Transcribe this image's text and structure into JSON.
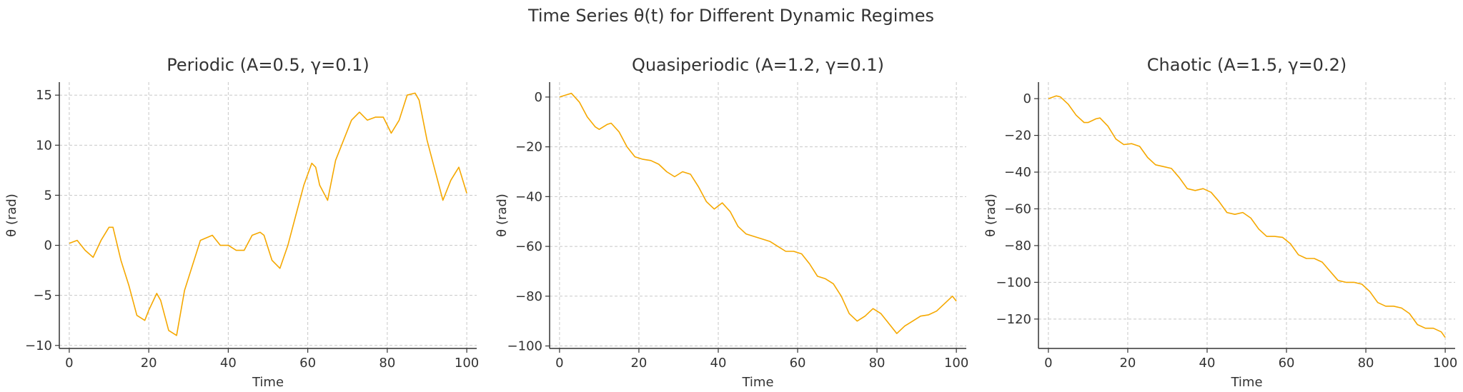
{
  "figure": {
    "title": "Time Series θ(t) for Different Dynamic Regimes"
  },
  "colors": {
    "line": "#F5A800",
    "text": "#333333",
    "grid": "#c8c8c8"
  },
  "chart_data": [
    {
      "type": "line",
      "title": "Periodic (A=0.5, γ=0.1)",
      "xlabel": "Time",
      "ylabel": "θ (rad)",
      "xlim": [
        -2.5,
        102.5
      ],
      "ylim": [
        -10.3,
        16.3
      ],
      "xticks": [
        0,
        20,
        40,
        60,
        80,
        100
      ],
      "yticks": [
        -10,
        -5,
        0,
        5,
        10,
        15
      ],
      "grid": true,
      "series": [
        {
          "x": [
            0,
            2,
            4,
            6,
            8,
            10,
            11,
            13,
            15,
            17,
            19,
            20,
            22,
            23,
            25,
            27,
            29,
            31,
            33,
            36,
            38,
            40,
            42,
            44,
            46,
            48,
            49,
            51,
            53,
            55,
            57,
            59,
            61,
            62,
            63,
            65,
            67,
            69,
            71,
            73,
            75,
            77,
            79,
            81,
            83,
            85,
            87,
            88,
            90,
            92,
            94,
            96,
            98,
            100
          ],
          "y": [
            0.2,
            0.5,
            -0.5,
            -1.2,
            0.5,
            1.8,
            1.8,
            -1.5,
            -4.0,
            -7.0,
            -7.5,
            -6.5,
            -4.8,
            -5.5,
            -8.5,
            -9.0,
            -4.5,
            -2.0,
            0.5,
            1.0,
            0.0,
            0.0,
            -0.5,
            -0.5,
            1.0,
            1.3,
            1.0,
            -1.5,
            -2.3,
            0.0,
            3.0,
            6.0,
            8.2,
            7.8,
            6.0,
            4.5,
            8.5,
            10.5,
            12.5,
            13.3,
            12.5,
            12.8,
            12.8,
            11.2,
            12.5,
            15.0,
            15.2,
            14.5,
            10.5,
            7.5,
            4.5,
            6.5,
            7.8,
            5.2
          ]
        }
      ]
    },
    {
      "type": "line",
      "title": "Quasiperiodic (A=1.2, γ=0.1)",
      "xlabel": "Time",
      "ylabel": "θ (rad)",
      "xlim": [
        -2.5,
        102.5
      ],
      "ylim": [
        -101,
        6
      ],
      "xticks": [
        0,
        20,
        40,
        60,
        80,
        100
      ],
      "yticks": [
        -100,
        -80,
        -60,
        -40,
        -20,
        0
      ],
      "grid": true,
      "series": [
        {
          "x": [
            0,
            2,
            3,
            5,
            7,
            9,
            10,
            12,
            13,
            15,
            17,
            19,
            21,
            23,
            25,
            27,
            29,
            31,
            33,
            35,
            37,
            39,
            41,
            43,
            45,
            47,
            49,
            51,
            53,
            55,
            57,
            59,
            61,
            63,
            65,
            67,
            69,
            71,
            73,
            75,
            77,
            79,
            81,
            83,
            85,
            87,
            89,
            91,
            93,
            95,
            97,
            99,
            100
          ],
          "y": [
            0,
            1.0,
            1.5,
            -2,
            -8,
            -12,
            -13,
            -11,
            -10.5,
            -14,
            -20,
            -24,
            -25,
            -25.5,
            -27,
            -30,
            -32,
            -30,
            -31,
            -36,
            -42,
            -45,
            -42.5,
            -46,
            -52,
            -55,
            -56,
            -57,
            -58,
            -60,
            -62,
            -62,
            -63,
            -67,
            -72,
            -73,
            -75,
            -80,
            -87,
            -90,
            -88,
            -85,
            -87,
            -91,
            -95,
            -92,
            -90,
            -88,
            -87.5,
            -86,
            -83,
            -80,
            -82
          ]
        }
      ]
    },
    {
      "type": "line",
      "title": "Chaotic (A=1.5, γ=0.2)",
      "xlabel": "Time",
      "ylabel": "θ (rad)",
      "xlim": [
        -2.5,
        102.5
      ],
      "ylim": [
        -136,
        9
      ],
      "xticks": [
        0,
        20,
        40,
        60,
        80,
        100
      ],
      "yticks": [
        -120,
        -100,
        -80,
        -60,
        -40,
        -20,
        0
      ],
      "grid": true,
      "series": [
        {
          "x": [
            0,
            2,
            3,
            5,
            7,
            9,
            10,
            12,
            13,
            15,
            17,
            19,
            21,
            23,
            25,
            27,
            29,
            31,
            33,
            35,
            37,
            39,
            41,
            43,
            45,
            47,
            49,
            51,
            53,
            55,
            57,
            59,
            61,
            63,
            65,
            67,
            69,
            71,
            73,
            75,
            77,
            79,
            81,
            83,
            85,
            87,
            89,
            91,
            93,
            95,
            97,
            99,
            100
          ],
          "y": [
            0,
            1.5,
            1.0,
            -3,
            -9,
            -13,
            -13,
            -11,
            -10.5,
            -15,
            -22,
            -25,
            -24.5,
            -26,
            -32,
            -36,
            -37,
            -38,
            -43,
            -49,
            -50,
            -49,
            -51,
            -56,
            -62,
            -63,
            -62,
            -65,
            -71,
            -75,
            -75,
            -75.5,
            -79,
            -85,
            -87,
            -87,
            -89,
            -94,
            -99,
            -100,
            -100,
            -101,
            -105,
            -111,
            -113,
            -113,
            -114,
            -117,
            -123,
            -125,
            -125,
            -127,
            -130
          ]
        }
      ]
    }
  ]
}
